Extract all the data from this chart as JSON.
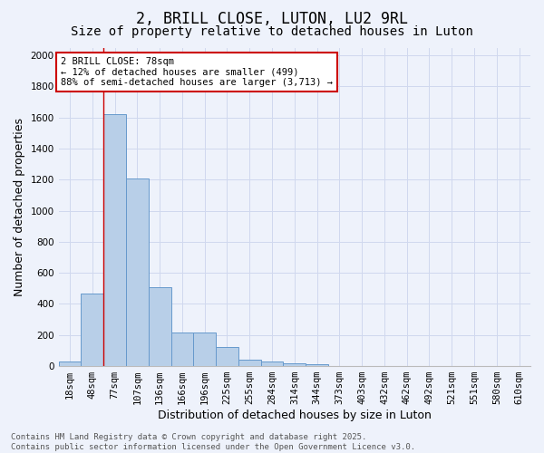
{
  "title": "2, BRILL CLOSE, LUTON, LU2 9RL",
  "subtitle": "Size of property relative to detached houses in Luton",
  "xlabel": "Distribution of detached houses by size in Luton",
  "ylabel": "Number of detached properties",
  "categories": [
    "18sqm",
    "48sqm",
    "77sqm",
    "107sqm",
    "136sqm",
    "166sqm",
    "196sqm",
    "225sqm",
    "255sqm",
    "284sqm",
    "314sqm",
    "344sqm",
    "373sqm",
    "403sqm",
    "432sqm",
    "462sqm",
    "492sqm",
    "521sqm",
    "551sqm",
    "580sqm",
    "610sqm"
  ],
  "values": [
    30,
    465,
    1620,
    1210,
    510,
    215,
    215,
    125,
    40,
    30,
    20,
    15,
    0,
    0,
    0,
    0,
    0,
    0,
    0,
    0,
    0
  ],
  "bar_color": "#b8cfe8",
  "bar_edge_color": "#6699cc",
  "background_color": "#eef2fb",
  "grid_color": "#d0d8ee",
  "vline_x_index": 2,
  "vline_color": "#cc0000",
  "annotation_text": "2 BRILL CLOSE: 78sqm\n← 12% of detached houses are smaller (499)\n88% of semi-detached houses are larger (3,713) →",
  "annotation_box_color": "#ffffff",
  "annotation_edge_color": "#cc0000",
  "ylim": [
    0,
    2050
  ],
  "yticks": [
    0,
    200,
    400,
    600,
    800,
    1000,
    1200,
    1400,
    1600,
    1800,
    2000
  ],
  "footer_text": "Contains HM Land Registry data © Crown copyright and database right 2025.\nContains public sector information licensed under the Open Government Licence v3.0.",
  "title_fontsize": 12,
  "subtitle_fontsize": 10,
  "label_fontsize": 9,
  "tick_fontsize": 7.5,
  "annotation_fontsize": 7.5,
  "footer_fontsize": 6.5
}
